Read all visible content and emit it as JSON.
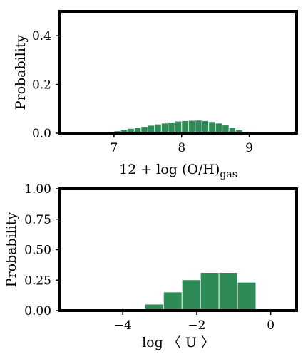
{
  "colors": {
    "bar": "#2e8b57",
    "axis": "#000000"
  },
  "chart_data": [
    {
      "type": "bar",
      "xlabel_main": "12 + log (O/H)",
      "xlabel_sub": "gas",
      "ylabel": "Probability",
      "xlim": [
        6.2,
        9.7
      ],
      "ylim": [
        0,
        0.5
      ],
      "x_ticks": [
        7,
        8,
        9
      ],
      "x_tick_labels": [
        "7",
        "8",
        "9"
      ],
      "y_ticks": [
        0.0,
        0.2,
        0.4
      ],
      "y_tick_labels": [
        "0.0",
        "0.2",
        "0.4"
      ],
      "grid": false,
      "bin_width": 0.1,
      "bin_centers": [
        6.85,
        6.95,
        7.05,
        7.15,
        7.25,
        7.35,
        7.45,
        7.55,
        7.65,
        7.75,
        7.85,
        7.95,
        8.05,
        8.15,
        8.25,
        8.35,
        8.45,
        8.55,
        8.65,
        8.75,
        8.85,
        8.95
      ],
      "values": [
        0.002,
        0.004,
        0.008,
        0.013,
        0.018,
        0.022,
        0.026,
        0.031,
        0.036,
        0.04,
        0.044,
        0.048,
        0.05,
        0.051,
        0.052,
        0.05,
        0.046,
        0.04,
        0.032,
        0.022,
        0.012,
        0.004
      ]
    },
    {
      "type": "bar",
      "xlabel_main": "log 〈 U 〉",
      "xlabel_sub": "",
      "ylabel": "Probability",
      "xlim": [
        -5.7,
        0.7
      ],
      "ylim": [
        0,
        1.0
      ],
      "x_ticks": [
        -4,
        -2,
        0
      ],
      "x_tick_labels": [
        "−4",
        "−2",
        "0"
      ],
      "y_ticks": [
        0.0,
        0.25,
        0.5,
        0.75,
        1.0
      ],
      "y_tick_labels": [
        "0.00",
        "0.25",
        "0.50",
        "0.75",
        "1.00"
      ],
      "grid": false,
      "bin_width": 0.5,
      "bin_centers": [
        -3.15,
        -2.65,
        -2.15,
        -1.65,
        -1.15,
        -0.65
      ],
      "values": [
        0.05,
        0.15,
        0.25,
        0.31,
        0.31,
        0.23
      ]
    }
  ]
}
